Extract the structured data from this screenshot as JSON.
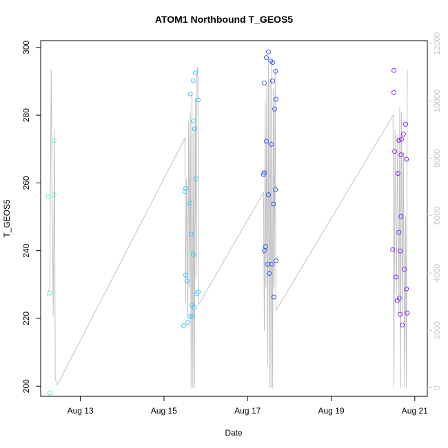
{
  "chart_data": {
    "type": "scatter",
    "title": "ATOM1 Northbound T_GEOS5",
    "xlabel": "Date",
    "ylabel": "T_GEOS5",
    "x_ticks": [
      "Aug 13",
      "Aug 15",
      "Aug 17",
      "Aug 19",
      "Aug 21"
    ],
    "x_tick_values": [
      13,
      15,
      17,
      19,
      21
    ],
    "x_unit": "day of August",
    "xlim": [
      12.05,
      21.3
    ],
    "ylim": [
      197,
      302
    ],
    "y_ticks": [
      200,
      220,
      240,
      260,
      280,
      300
    ],
    "y2_label": "",
    "y2lim": [
      -300,
      12100
    ],
    "y2_ticks": [
      0,
      2000,
      4000,
      6000,
      8000,
      10000,
      12000
    ],
    "grid": false,
    "legend": "none",
    "colors": {
      "flight_1": "#4DFFBB",
      "flight_2": "#33CCFF",
      "flight_3": "#3355FF",
      "flight_4": "#8822FF",
      "altitude_line": "#c0c0c0"
    },
    "series": [
      {
        "key": "flight_1",
        "points": [
          [
            12.23,
            256
          ],
          [
            12.27,
            227.5
          ],
          [
            12.27,
            198
          ],
          [
            12.37,
            272.5
          ],
          [
            12.37,
            256.5
          ]
        ]
      },
      {
        "key": "flight_2",
        "points": [
          [
            15.47,
            217.8
          ],
          [
            15.5,
            257.5
          ],
          [
            15.52,
            258.4
          ],
          [
            15.52,
            232.8
          ],
          [
            15.55,
            231
          ],
          [
            15.57,
            218.8
          ],
          [
            15.62,
            220.5
          ],
          [
            15.62,
            254
          ],
          [
            15.63,
            286.3
          ],
          [
            15.65,
            244.9
          ],
          [
            15.67,
            223.9
          ],
          [
            15.67,
            220.6
          ],
          [
            15.7,
            290.2
          ],
          [
            15.7,
            278.3
          ],
          [
            15.7,
            238.9
          ],
          [
            15.72,
            223.3
          ],
          [
            15.73,
            276
          ],
          [
            15.75,
            292.5
          ],
          [
            15.77,
            261.2
          ],
          [
            15.78,
            227.3
          ],
          [
            15.82,
            284.5
          ],
          [
            15.82,
            227.8
          ]
        ]
      },
      {
        "key": "flight_3",
        "points": [
          [
            17.38,
            262.5
          ],
          [
            17.4,
            263
          ],
          [
            17.4,
            240
          ],
          [
            17.4,
            289.5
          ],
          [
            17.43,
            241.2
          ],
          [
            17.45,
            297
          ],
          [
            17.45,
            272.3
          ],
          [
            17.48,
            236
          ],
          [
            17.5,
            256.5
          ],
          [
            17.5,
            298.7
          ],
          [
            17.52,
            233.3
          ],
          [
            17.55,
            296
          ],
          [
            17.57,
            271.4
          ],
          [
            17.58,
            236
          ],
          [
            17.6,
            290.1
          ],
          [
            17.6,
            295.6
          ],
          [
            17.62,
            253.8
          ],
          [
            17.63,
            226.3
          ],
          [
            17.65,
            281.8
          ],
          [
            17.67,
            293
          ],
          [
            17.67,
            258
          ],
          [
            17.68,
            284.7
          ],
          [
            17.68,
            237
          ]
        ]
      },
      {
        "key": "flight_4",
        "points": [
          [
            20.47,
            240.3
          ],
          [
            20.5,
            293.2
          ],
          [
            20.5,
            286.7
          ],
          [
            20.52,
            269.3
          ],
          [
            20.55,
            232.2
          ],
          [
            20.58,
            225.2
          ],
          [
            20.6,
            262.8
          ],
          [
            20.62,
            272.6
          ],
          [
            20.62,
            245.4
          ],
          [
            20.63,
            226
          ],
          [
            20.65,
            239.9
          ],
          [
            20.65,
            221.2
          ],
          [
            20.67,
            250.1
          ],
          [
            20.67,
            268.3
          ],
          [
            20.68,
            272.9
          ],
          [
            20.7,
            218
          ],
          [
            20.73,
            274.4
          ],
          [
            20.75,
            234.5
          ],
          [
            20.78,
            277.3
          ],
          [
            20.8,
            267
          ],
          [
            20.8,
            228.7
          ],
          [
            20.82,
            221.6
          ]
        ]
      }
    ],
    "altitude_series": {
      "key": "altitude_line",
      "axis": "right",
      "points": [
        [
          12.2,
          3200
        ],
        [
          12.27,
          3500
        ],
        [
          12.3,
          11100
        ],
        [
          12.35,
          2500
        ],
        [
          12.38,
          9000
        ],
        [
          12.4,
          300
        ],
        [
          12.45,
          100
        ],
        [
          15.5,
          8700
        ],
        [
          15.52,
          3000
        ],
        [
          15.54,
          7300
        ],
        [
          15.57,
          2500
        ],
        [
          15.59,
          9300
        ],
        [
          15.61,
          3500
        ],
        [
          15.63,
          9600
        ],
        [
          15.65,
          0
        ],
        [
          15.67,
          10300
        ],
        [
          15.69,
          0
        ],
        [
          15.71,
          9100
        ],
        [
          15.73,
          0
        ],
        [
          15.75,
          10100
        ],
        [
          15.77,
          3800
        ],
        [
          15.79,
          11000
        ],
        [
          15.81,
          11200
        ],
        [
          15.83,
          2900
        ],
        [
          17.38,
          6800
        ],
        [
          17.4,
          2000
        ],
        [
          17.42,
          10000
        ],
        [
          17.44,
          3500
        ],
        [
          17.46,
          10600
        ],
        [
          17.48,
          800
        ],
        [
          17.5,
          11300
        ],
        [
          17.52,
          0
        ],
        [
          17.54,
          10800
        ],
        [
          17.56,
          0
        ],
        [
          17.58,
          11400
        ],
        [
          17.6,
          0
        ],
        [
          17.62,
          10400
        ],
        [
          17.64,
          3500
        ],
        [
          17.66,
          11100
        ],
        [
          17.68,
          2700
        ],
        [
          20.48,
          9500
        ],
        [
          20.5,
          0
        ],
        [
          20.53,
          9000
        ],
        [
          20.56,
          3200
        ],
        [
          20.59,
          8800
        ],
        [
          20.62,
          2600
        ],
        [
          20.64,
          9800
        ],
        [
          20.66,
          0
        ],
        [
          20.68,
          9600
        ],
        [
          20.71,
          2500
        ],
        [
          20.73,
          8200
        ],
        [
          20.76,
          0
        ],
        [
          20.78,
          6000
        ],
        [
          20.8,
          0
        ],
        [
          20.82,
          11100
        ]
      ]
    }
  }
}
